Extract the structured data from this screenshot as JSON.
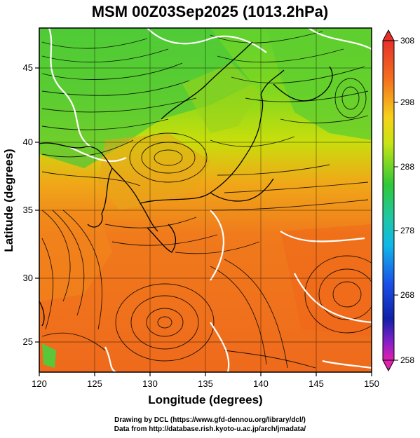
{
  "title": "MSM 00Z03Sep2025 (1013.2hPa)",
  "axes": {
    "xlabel": "Longitude (degrees)",
    "ylabel": "Latitude  (degrees)",
    "x_ticks": [
      "120",
      "125",
      "130",
      "135",
      "140",
      "145",
      "150"
    ],
    "y_ticks": [
      "25",
      "30",
      "35",
      "40",
      "45"
    ]
  },
  "colorbar": {
    "ticks": [
      "308",
      "298",
      "288",
      "278",
      "268",
      "258"
    ]
  },
  "footer": {
    "line1": "Drawing by DCL (https://www.gfd-dennou.org/library/dcl/)",
    "line2": "Data from http://database.rish.kyoto-u.ac.jp/arch/jmadata/"
  },
  "colors": {
    "warm": "#f06a1c",
    "mid": "#c8e000",
    "cool": "#3ec83c",
    "contour": "#ffffff",
    "coast": "#000000"
  }
}
